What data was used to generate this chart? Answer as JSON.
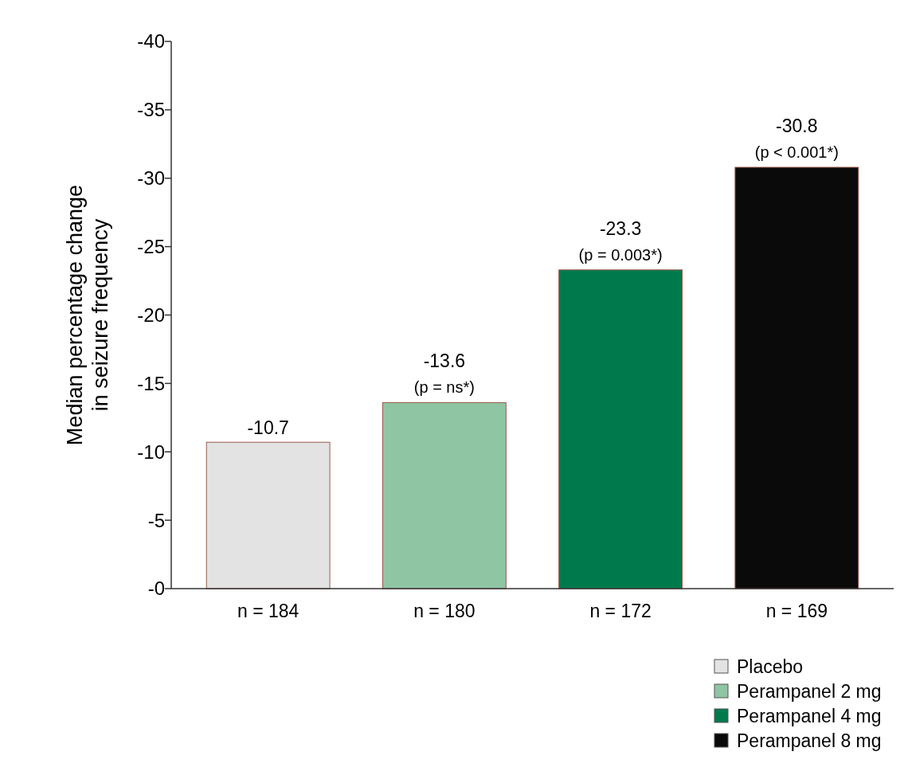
{
  "chart_data": {
    "type": "bar",
    "ylabel": "Median percentage change in seizure frequency",
    "categories": [
      "n = 184",
      "n = 180",
      "n = 172",
      "n = 169"
    ],
    "series": [
      {
        "name": "Placebo",
        "color": "#e3e3e3",
        "values": [
          -10.7,
          null,
          null,
          null
        ]
      },
      {
        "name": "Perampanel 2 mg",
        "color": "#8fc5a3",
        "values": [
          null,
          -13.6,
          null,
          null
        ]
      },
      {
        "name": "Perampanel 4 mg",
        "color": "#007a4d",
        "values": [
          null,
          null,
          -23.3,
          null
        ]
      },
      {
        "name": "Perampanel 8 mg",
        "color": "#0a0a0a",
        "values": [
          null,
          null,
          null,
          -30.8
        ]
      }
    ],
    "ylim": [
      0,
      -40
    ],
    "yticks": [
      {
        "value": 0,
        "label": "-0"
      },
      -5,
      -10,
      -15,
      -20,
      -25,
      -30,
      -35,
      -40
    ],
    "data_labels": true,
    "annotations": [
      {
        "text": "(p = ns*)",
        "x": "n = 180",
        "y": -13.6
      },
      {
        "text": "(p = 0.003*)",
        "x": "n = 172",
        "y": -23.3
      },
      {
        "text": "(p < 0.001*)",
        "x": "n = 169",
        "y": -30.8
      }
    ],
    "legend": "bottom right",
    "grid": false
  }
}
